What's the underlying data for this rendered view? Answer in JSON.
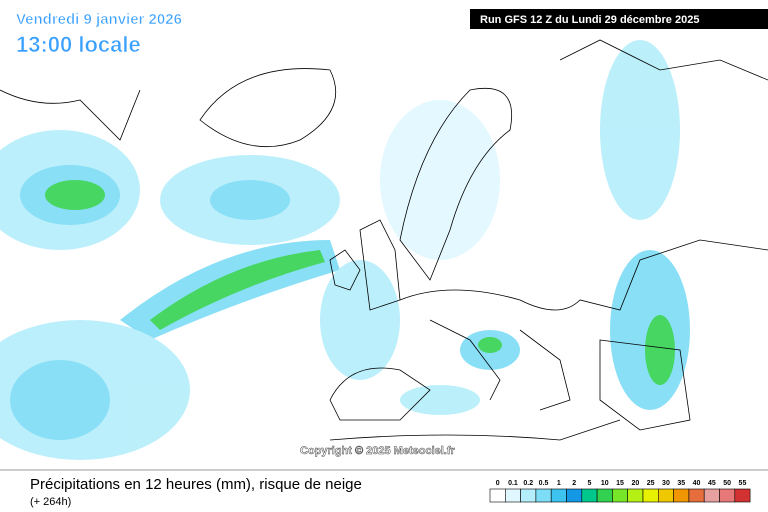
{
  "header": {
    "date": "Vendredi 9 janvier 2026",
    "time": "13:00 locale",
    "run": "Run GFS 12 Z du Lundi 29 décembre 2025"
  },
  "map": {
    "copyright": "Copyright © 2025 Meteociel.fr"
  },
  "footer": {
    "title": "Précipitations en 12 heures (mm), risque de neige",
    "lead": "(+ 264h)"
  },
  "legend": {
    "items": [
      {
        "value": 0,
        "color": "#ffffff"
      },
      {
        "value": 0.1,
        "color": "#e1f7ff"
      },
      {
        "value": 0.2,
        "color": "#b4eefb"
      },
      {
        "value": 0.5,
        "color": "#7ddcf6"
      },
      {
        "value": 1,
        "color": "#3cc3f0"
      },
      {
        "value": 2,
        "color": "#1498e6"
      },
      {
        "value": 5,
        "color": "#00c88c"
      },
      {
        "value": 10,
        "color": "#32d250"
      },
      {
        "value": 15,
        "color": "#78e628"
      },
      {
        "value": 20,
        "color": "#b4f014"
      },
      {
        "value": 25,
        "color": "#e6f000"
      },
      {
        "value": 30,
        "color": "#f0c800"
      },
      {
        "value": 35,
        "color": "#f09600"
      },
      {
        "value": 40,
        "color": "#e66e3c"
      },
      {
        "value": 45,
        "color": "#e6a0a0"
      },
      {
        "value": 50,
        "color": "#e67878"
      },
      {
        "value": 55,
        "color": "#d23232"
      }
    ]
  }
}
